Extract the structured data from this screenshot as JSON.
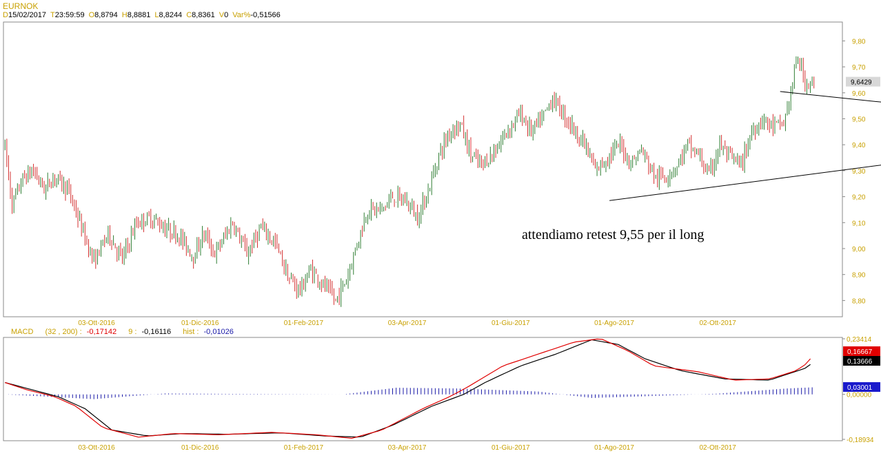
{
  "header": {
    "symbol": "EURNOK",
    "fields": [
      {
        "k": "D",
        "v": "15/02/2017"
      },
      {
        "k": "T",
        "v": "23:59:59"
      },
      {
        "k": "O",
        "v": "8,8794"
      },
      {
        "k": "H",
        "v": "8,8881"
      },
      {
        "k": "L",
        "v": "8,8244"
      },
      {
        "k": "C",
        "v": "8,8361"
      },
      {
        "k": "V",
        "v": "0"
      },
      {
        "k": "Var%",
        "v": "-0,51566"
      }
    ]
  },
  "macd_header": {
    "name": "MACD",
    "params": "(32 , 200) :",
    "macd_value": "-0,17142",
    "signal_label": "9 :",
    "signal_value": "-0,16116",
    "hist_label": "hist :",
    "hist_value": "-0,01026"
  },
  "annotation": "attendiamo retest 9,55 per il long",
  "colors": {
    "up": "#2e7d32",
    "down": "#d32f2f",
    "axis_text": "#c8a000",
    "macd_line": "#e00000",
    "signal_line": "#000000",
    "hist": "#1a1aa8",
    "price_tag": "#d8d8d8",
    "tag_red": "#e00000",
    "tag_black": "#000000",
    "tag_blue": "#1a1acc"
  },
  "chart_data": [
    {
      "type": "candlestick",
      "title": "EURNOK",
      "y_ticks": [
        "9,80",
        "9,70",
        "9,60",
        "9,50",
        "9,40",
        "9,30",
        "9,20",
        "9,10",
        "9,00",
        "8,90",
        "8,80"
      ],
      "ylim": [
        8.74,
        9.87
      ],
      "x_ticks": [
        "03-Ott-2016",
        "01-Dic-2016",
        "01-Feb-2017",
        "03-Apr-2017",
        "01-Giu-2017",
        "01-Ago-2017",
        "02-Ott-2017"
      ],
      "last_price_label": "9,6429",
      "last_price": 9.6429,
      "anchors": [
        [
          0,
          9.39
        ],
        [
          4,
          9.17
        ],
        [
          10,
          9.27
        ],
        [
          16,
          9.3
        ],
        [
          22,
          9.23
        ],
        [
          28,
          9.28
        ],
        [
          36,
          9.22
        ],
        [
          42,
          9.1
        ],
        [
          50,
          8.95
        ],
        [
          58,
          9.06
        ],
        [
          66,
          8.96
        ],
        [
          74,
          9.1
        ],
        [
          82,
          9.12
        ],
        [
          90,
          9.08
        ],
        [
          98,
          9.05
        ],
        [
          106,
          8.97
        ],
        [
          112,
          9.06
        ],
        [
          118,
          8.98
        ],
        [
          128,
          9.1
        ],
        [
          136,
          8.98
        ],
        [
          144,
          9.08
        ],
        [
          152,
          9.02
        ],
        [
          160,
          8.88
        ],
        [
          166,
          8.84
        ],
        [
          172,
          8.92
        ],
        [
          180,
          8.85
        ],
        [
          186,
          8.8
        ],
        [
          192,
          8.88
        ],
        [
          198,
          9.02
        ],
        [
          204,
          9.15
        ],
        [
          212,
          9.15
        ],
        [
          218,
          9.2
        ],
        [
          226,
          9.18
        ],
        [
          232,
          9.12
        ],
        [
          238,
          9.22
        ],
        [
          244,
          9.36
        ],
        [
          250,
          9.45
        ],
        [
          256,
          9.48
        ],
        [
          262,
          9.36
        ],
        [
          268,
          9.32
        ],
        [
          276,
          9.38
        ],
        [
          282,
          9.45
        ],
        [
          290,
          9.52
        ],
        [
          296,
          9.45
        ],
        [
          302,
          9.5
        ],
        [
          308,
          9.58
        ],
        [
          314,
          9.52
        ],
        [
          320,
          9.46
        ],
        [
          326,
          9.4
        ],
        [
          332,
          9.3
        ],
        [
          340,
          9.36
        ],
        [
          346,
          9.4
        ],
        [
          352,
          9.33
        ],
        [
          358,
          9.38
        ],
        [
          366,
          9.27
        ],
        [
          372,
          9.28
        ],
        [
          378,
          9.32
        ],
        [
          384,
          9.4
        ],
        [
          390,
          9.36
        ],
        [
          396,
          9.28
        ],
        [
          402,
          9.4
        ],
        [
          408,
          9.35
        ],
        [
          414,
          9.32
        ],
        [
          420,
          9.45
        ],
        [
          426,
          9.5
        ],
        [
          432,
          9.47
        ],
        [
          438,
          9.48
        ],
        [
          442,
          9.6
        ],
        [
          446,
          9.74
        ],
        [
          450,
          9.64
        ]
      ],
      "trendlines": [
        {
          "from": [
            436,
            9.605
          ],
          "to": [
            541,
            9.53
          ]
        },
        {
          "from": [
            340,
            9.185
          ],
          "to": [
            530,
            9.355
          ]
        }
      ]
    },
    {
      "type": "line+histogram",
      "title": "MACD",
      "y_ticks": [
        "0,23414",
        "0,00000",
        "-0,18934"
      ],
      "ylim": [
        -0.18934,
        0.23414
      ],
      "x_ticks": [
        "03-Ott-2016",
        "01-Dic-2016",
        "01-Feb-2017",
        "03-Apr-2017",
        "01-Giu-2017",
        "01-Ago-2017",
        "02-Ott-2017"
      ],
      "value_tags": [
        "0,16667",
        "0,13666",
        "0,03001"
      ],
      "series": [
        {
          "role": "macd",
          "points": [
            [
              0,
              0.05
            ],
            [
              12,
              0.02
            ],
            [
              28,
              -0.01
            ],
            [
              40,
              -0.05
            ],
            [
              55,
              -0.14
            ],
            [
              75,
              -0.18
            ],
            [
              95,
              -0.165
            ],
            [
              120,
              -0.17
            ],
            [
              150,
              -0.16
            ],
            [
              175,
              -0.17
            ],
            [
              195,
              -0.185
            ],
            [
              212,
              -0.15
            ],
            [
              235,
              -0.06
            ],
            [
              250,
              -0.01
            ],
            [
              260,
              0.03
            ],
            [
              280,
              0.12
            ],
            [
              300,
              0.17
            ],
            [
              320,
              0.22
            ],
            [
              335,
              0.235
            ],
            [
              350,
              0.185
            ],
            [
              365,
              0.12
            ],
            [
              390,
              0.095
            ],
            [
              410,
              0.06
            ],
            [
              430,
              0.065
            ],
            [
              445,
              0.1
            ],
            [
              450,
              0.125
            ],
            [
              455,
              0.16667
            ]
          ]
        },
        {
          "role": "signal",
          "points": [
            [
              0,
              0.05
            ],
            [
              15,
              0.02
            ],
            [
              30,
              -0.01
            ],
            [
              45,
              -0.06
            ],
            [
              60,
              -0.15
            ],
            [
              80,
              -0.175
            ],
            [
              100,
              -0.165
            ],
            [
              125,
              -0.168
            ],
            [
              155,
              -0.162
            ],
            [
              180,
              -0.175
            ],
            [
              200,
              -0.18
            ],
            [
              218,
              -0.13
            ],
            [
              240,
              -0.05
            ],
            [
              258,
              0.0
            ],
            [
              270,
              0.05
            ],
            [
              290,
              0.12
            ],
            [
              310,
              0.17
            ],
            [
              330,
              0.23
            ],
            [
              345,
              0.21
            ],
            [
              360,
              0.15
            ],
            [
              380,
              0.1
            ],
            [
              405,
              0.065
            ],
            [
              430,
              0.06
            ],
            [
              450,
              0.11
            ],
            [
              455,
              0.13666
            ]
          ]
        },
        {
          "role": "hist",
          "points": [
            [
              0,
              0.0
            ],
            [
              50,
              -0.02
            ],
            [
              90,
              0.004
            ],
            [
              130,
              0.002
            ],
            [
              190,
              0.0
            ],
            [
              220,
              0.028
            ],
            [
              255,
              0.025
            ],
            [
              300,
              0.012
            ],
            [
              330,
              -0.015
            ],
            [
              360,
              -0.008
            ],
            [
              400,
              0.003
            ],
            [
              440,
              0.025
            ],
            [
              455,
              0.03001
            ]
          ]
        }
      ]
    }
  ]
}
